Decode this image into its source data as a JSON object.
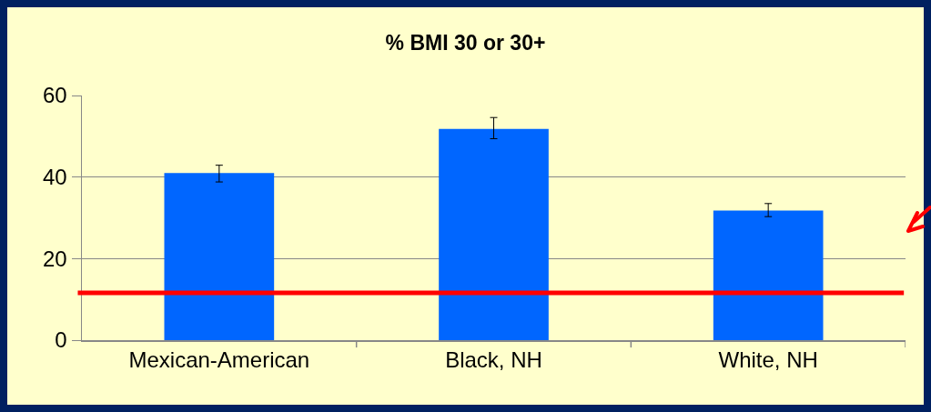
{
  "chart_data": {
    "type": "bar",
    "title": "% BMI 30 or 30+",
    "categories": [
      "Mexican-American",
      "Black, NH",
      "White, NH"
    ],
    "values": [
      41.0,
      51.8,
      31.8
    ],
    "errors": [
      [
        38.8,
        42.9
      ],
      [
        49.4,
        54.6
      ],
      [
        30.3,
        33.5
      ]
    ],
    "color": "#0066ff",
    "ylim": [
      0,
      60
    ],
    "yticks": [
      0,
      20,
      40,
      60
    ],
    "grid": "y",
    "ref_lines": [
      {
        "axis": "y",
        "value": 11.6,
        "color": "#ff0000",
        "line_style": "solid"
      }
    ]
  }
}
